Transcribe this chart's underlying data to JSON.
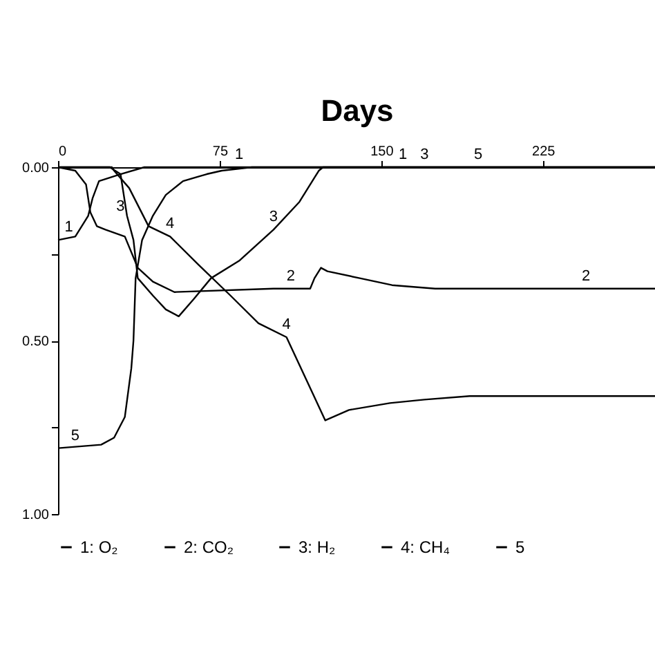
{
  "chart_data": {
    "type": "line",
    "xlabel": "Days",
    "xlim": [
      0,
      277
    ],
    "xticks": [
      0,
      75,
      150,
      225
    ],
    "ylim": [
      1,
      0
    ],
    "yticks": [
      {
        "value": 0,
        "label": "0.00"
      },
      {
        "value": 0.25,
        "label": null
      },
      {
        "value": 0.5,
        "label": "0.50"
      },
      {
        "value": 0.75,
        "label": null
      },
      {
        "value": 1,
        "label": "1.00"
      }
    ],
    "grid": false,
    "legend": "bottom",
    "marker": "none",
    "line_style": "solid",
    "series": [
      {
        "name": "1: O₂",
        "color": "#000000",
        "x": [
          0,
          8,
          14,
          16,
          19,
          24,
          29,
          40,
          277
        ],
        "values": [
          0.21,
          0.2,
          0.14,
          0.09,
          0.04,
          0.03,
          0.02,
          0,
          0
        ]
      },
      {
        "name": "2: CO₂",
        "color": "#000000",
        "x": [
          0,
          8,
          13,
          15,
          18,
          22,
          31,
          37,
          44,
          54,
          100,
          117,
          119,
          122,
          125,
          140,
          155,
          175,
          277
        ],
        "values": [
          0,
          0.01,
          0.05,
          0.13,
          0.17,
          0.18,
          0.2,
          0.29,
          0.33,
          0.36,
          0.35,
          0.35,
          0.32,
          0.29,
          0.3,
          0.32,
          0.34,
          0.35,
          0.35
        ]
      },
      {
        "name": "3: H₂",
        "color": "#000000",
        "x": [
          0,
          24,
          29,
          32,
          35,
          37,
          44,
          50,
          56,
          63,
          71,
          84,
          100,
          112,
          121,
          123,
          277
        ],
        "values": [
          0,
          0,
          0.02,
          0.14,
          0.21,
          0.32,
          0.37,
          0.41,
          0.43,
          0.38,
          0.32,
          0.27,
          0.18,
          0.1,
          0.01,
          0,
          0
        ]
      },
      {
        "name": "4: CH₄",
        "color": "#000000",
        "x": [
          0,
          25,
          26,
          33,
          42,
          52,
          65,
          80,
          93,
          106,
          118,
          124,
          135,
          154,
          170,
          191,
          277
        ],
        "values": [
          0,
          0,
          0.01,
          0.06,
          0.17,
          0.2,
          0.28,
          0.37,
          0.45,
          0.49,
          0.65,
          0.73,
          0.7,
          0.68,
          0.67,
          0.66,
          0.66
        ]
      },
      {
        "name": "5",
        "color": "#000000",
        "x": [
          0,
          20,
          26,
          31,
          34,
          35,
          36,
          39,
          44,
          50,
          58,
          69,
          76,
          90,
          277
        ],
        "values": [
          0.81,
          0.8,
          0.78,
          0.72,
          0.58,
          0.5,
          0.32,
          0.21,
          0.14,
          0.08,
          0.04,
          0.02,
          0.01,
          0,
          0
        ]
      }
    ],
    "annotations": [
      {
        "text": "1",
        "x": 5,
        "y": 0.21
      },
      {
        "text": "2",
        "x": 108,
        "y": 0.35
      },
      {
        "text": "2",
        "x": 245,
        "y": 0.35
      },
      {
        "text": "3",
        "x": 29,
        "y": 0.15
      },
      {
        "text": "3",
        "x": 100,
        "y": 0.18
      },
      {
        "text": "4",
        "x": 52,
        "y": 0.2
      },
      {
        "text": "4",
        "x": 106,
        "y": 0.49
      },
      {
        "text": "5",
        "x": 8,
        "y": 0.81
      },
      {
        "text": "1",
        "x": 84,
        "y": 0
      },
      {
        "text": "1",
        "x": 160,
        "y": 0
      },
      {
        "text": "3",
        "x": 170,
        "y": 0
      },
      {
        "text": "5",
        "x": 195,
        "y": 0
      }
    ]
  }
}
